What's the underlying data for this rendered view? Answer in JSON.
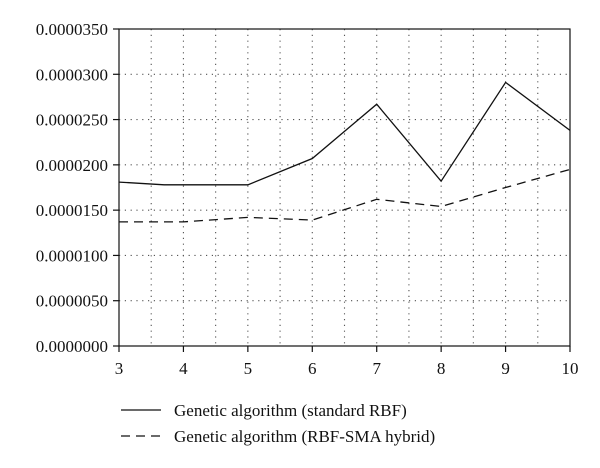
{
  "chart_data": {
    "type": "line",
    "x": [
      3,
      3.7,
      4,
      5,
      6,
      7,
      8,
      9,
      10
    ],
    "xticks": [
      "3",
      "4",
      "5",
      "6",
      "7",
      "8",
      "9",
      "10"
    ],
    "yticks": [
      "0.0000000",
      "0.0000050",
      "0.0000100",
      "0.0000150",
      "0.0000200",
      "0.0000250",
      "0.0000300",
      "0.0000350"
    ],
    "xlim": [
      3,
      10
    ],
    "ylim": [
      0,
      3.5e-05
    ],
    "grid": true,
    "legend_position": "bottom",
    "series": [
      {
        "name": "Genetic algorithm (standard RBF)",
        "style": "solid",
        "color": "#111111",
        "points": [
          [
            3,
            1.81e-05
          ],
          [
            3.7,
            1.78e-05
          ],
          [
            4,
            1.78e-05
          ],
          [
            5,
            1.78e-05
          ],
          [
            6,
            2.07e-05
          ],
          [
            7,
            2.67e-05
          ],
          [
            8,
            1.82e-05
          ],
          [
            9,
            2.91e-05
          ],
          [
            10,
            2.38e-05
          ]
        ]
      },
      {
        "name": "Genetic algorithm (RBF-SMA hybrid)",
        "style": "dashed",
        "color": "#111111",
        "points": [
          [
            3,
            1.37e-05
          ],
          [
            4,
            1.37e-05
          ],
          [
            5,
            1.42e-05
          ],
          [
            6,
            1.39e-05
          ],
          [
            7,
            1.62e-05
          ],
          [
            8,
            1.54e-05
          ],
          [
            9,
            1.75e-05
          ],
          [
            10,
            1.95e-05
          ]
        ]
      }
    ]
  }
}
